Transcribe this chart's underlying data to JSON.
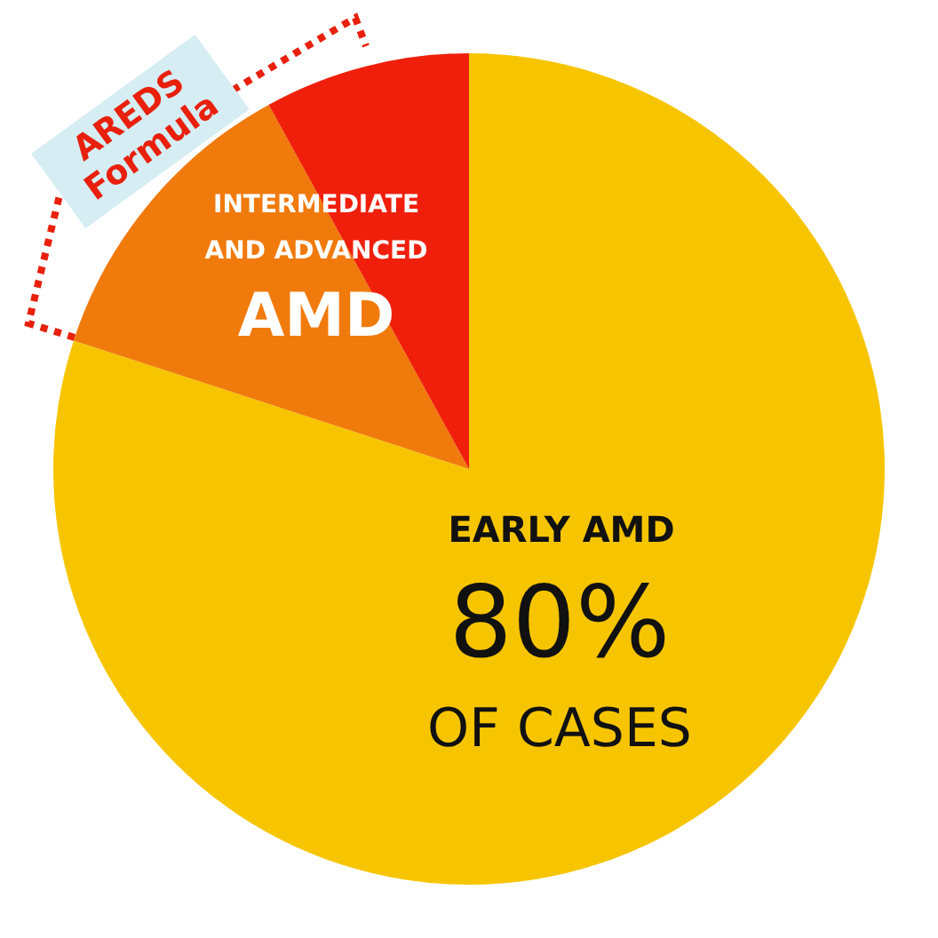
{
  "chart_data": {
    "type": "pie",
    "categories": [
      "EARLY AMD",
      null,
      null
    ],
    "values": [
      80,
      12,
      8
    ],
    "colors": [
      "#f7c500",
      "#f07a0c",
      "#ef1f0c"
    ],
    "value_labels": [
      "80%",
      null,
      null
    ],
    "annotations": [
      "OF CASES",
      "INTERMEDIATE AND ADVANCED",
      "AMD",
      "AREDS Formula"
    ],
    "legend": false
  }
}
